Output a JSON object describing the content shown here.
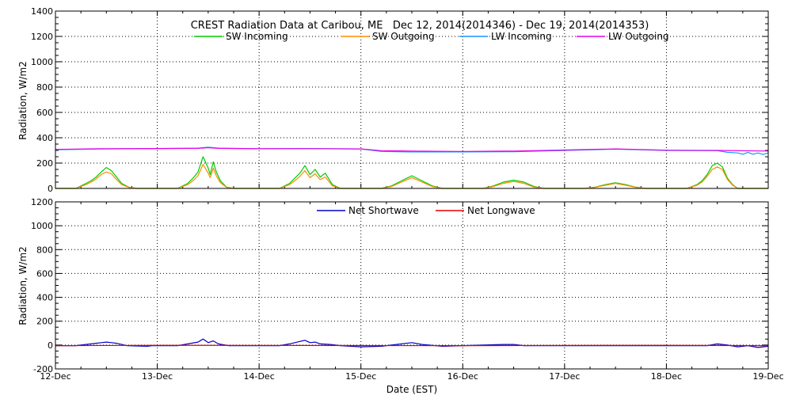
{
  "chart_data": [
    {
      "type": "line",
      "title": "CREST Radiation Data at Caribou, ME   Dec 12, 2014(2014346) - Dec 19, 2014(2014353)",
      "xlabel": "",
      "ylabel": "Radiation, W/m2",
      "xlim": [
        0,
        7
      ],
      "ylim": [
        0,
        1400
      ],
      "y_ticks": [
        0,
        200,
        400,
        600,
        800,
        1000,
        1200,
        1400
      ],
      "grid": true,
      "legend_position": "top",
      "series": [
        {
          "name": "SW Incoming",
          "color": "#00cc00",
          "x": [
            0,
            0.2,
            0.3,
            0.35,
            0.4,
            0.45,
            0.5,
            0.55,
            0.6,
            0.65,
            0.72,
            0.8,
            1.2,
            1.3,
            1.35,
            1.4,
            1.45,
            1.5,
            1.52,
            1.55,
            1.58,
            1.62,
            1.68,
            1.75,
            2.2,
            2.3,
            2.35,
            2.4,
            2.45,
            2.5,
            2.55,
            2.6,
            2.65,
            2.72,
            2.8,
            3.2,
            3.3,
            3.4,
            3.5,
            3.6,
            3.7,
            3.8,
            4.2,
            4.3,
            4.4,
            4.5,
            4.6,
            4.7,
            4.8,
            5.2,
            5.3,
            5.4,
            5.5,
            5.6,
            5.7,
            5.8,
            6.2,
            6.3,
            6.35,
            6.4,
            6.45,
            6.5,
            6.55,
            6.6,
            6.65,
            6.7,
            7
          ],
          "values": [
            0,
            0,
            40,
            60,
            90,
            130,
            165,
            140,
            90,
            40,
            10,
            0,
            0,
            40,
            80,
            130,
            250,
            160,
            110,
            210,
            130,
            60,
            10,
            0,
            0,
            40,
            80,
            120,
            180,
            110,
            150,
            90,
            120,
            30,
            0,
            0,
            20,
            60,
            100,
            60,
            20,
            0,
            0,
            20,
            50,
            65,
            50,
            15,
            0,
            0,
            10,
            30,
            45,
            30,
            10,
            0,
            0,
            30,
            60,
            110,
            180,
            200,
            170,
            80,
            30,
            0,
            0
          ]
        },
        {
          "name": "SW Outgoing",
          "color": "#ff8c00",
          "x": [
            0,
            0.2,
            0.3,
            0.35,
            0.4,
            0.45,
            0.5,
            0.55,
            0.6,
            0.65,
            0.72,
            0.8,
            1.2,
            1.3,
            1.35,
            1.4,
            1.45,
            1.5,
            1.52,
            1.55,
            1.58,
            1.62,
            1.68,
            1.75,
            2.2,
            2.3,
            2.35,
            2.4,
            2.45,
            2.5,
            2.55,
            2.6,
            2.65,
            2.72,
            2.8,
            3.2,
            3.3,
            3.4,
            3.5,
            3.6,
            3.7,
            3.8,
            4.2,
            4.3,
            4.4,
            4.5,
            4.6,
            4.7,
            4.8,
            5.2,
            5.3,
            5.4,
            5.5,
            5.6,
            5.7,
            5.8,
            6.2,
            6.3,
            6.35,
            6.4,
            6.45,
            6.5,
            6.55,
            6.6,
            6.65,
            6.7,
            7
          ],
          "values": [
            0,
            0,
            30,
            50,
            75,
            110,
            130,
            115,
            70,
            30,
            8,
            0,
            0,
            30,
            60,
            100,
            190,
            120,
            85,
            160,
            100,
            45,
            8,
            0,
            0,
            30,
            60,
            95,
            140,
            85,
            115,
            70,
            90,
            20,
            0,
            0,
            15,
            50,
            85,
            50,
            15,
            0,
            0,
            15,
            40,
            55,
            40,
            10,
            0,
            0,
            8,
            25,
            40,
            25,
            8,
            0,
            0,
            25,
            50,
            95,
            150,
            170,
            150,
            70,
            25,
            0,
            0
          ]
        },
        {
          "name": "LW Incoming",
          "color": "#1e90ff",
          "x": [
            0,
            0.5,
            1.0,
            1.4,
            1.5,
            1.6,
            2.0,
            2.5,
            3.0,
            3.2,
            3.5,
            4.0,
            4.5,
            5.0,
            5.5,
            6.0,
            6.5,
            6.6,
            6.7,
            6.75,
            6.8,
            6.85,
            6.9,
            6.95,
            7
          ],
          "values": [
            305,
            312,
            315,
            318,
            325,
            318,
            313,
            315,
            312,
            292,
            288,
            288,
            290,
            300,
            310,
            300,
            298,
            285,
            280,
            270,
            285,
            270,
            280,
            268,
            280
          ]
        },
        {
          "name": "LW Outgoing",
          "color": "#e800e8",
          "x": [
            0,
            0.5,
            1.0,
            1.4,
            1.5,
            1.6,
            2.0,
            2.5,
            3.0,
            3.2,
            3.5,
            4.0,
            4.5,
            5.0,
            5.5,
            6.0,
            6.5,
            7
          ],
          "values": [
            308,
            314,
            315,
            316,
            322,
            316,
            313,
            314,
            312,
            298,
            295,
            292,
            295,
            303,
            312,
            302,
            300,
            295
          ]
        }
      ]
    },
    {
      "type": "line",
      "title": "",
      "xlabel": "Date (EST)",
      "ylabel": "Radiation, W/m2",
      "xlim": [
        0,
        7
      ],
      "ylim": [
        -200,
        1200
      ],
      "y_ticks": [
        -200,
        0,
        200,
        400,
        600,
        800,
        1000,
        1200
      ],
      "x_ticks": [
        "12-Dec",
        "13-Dec",
        "14-Dec",
        "15-Dec",
        "16-Dec",
        "17-Dec",
        "18-Dec",
        "19-Dec"
      ],
      "grid": true,
      "legend_position": "top",
      "series": [
        {
          "name": "Net Shortwave",
          "color": "#0000cc",
          "x": [
            0,
            0.2,
            0.3,
            0.4,
            0.5,
            0.55,
            0.6,
            0.7,
            0.9,
            0.95,
            1.2,
            1.3,
            1.4,
            1.45,
            1.5,
            1.55,
            1.6,
            1.7,
            2.2,
            2.3,
            2.4,
            2.45,
            2.5,
            2.55,
            2.6,
            2.7,
            2.8,
            3.0,
            3.2,
            3.4,
            3.5,
            3.6,
            3.8,
            4.0,
            4.4,
            4.5,
            4.6,
            5.0,
            5.5,
            6.0,
            6.4,
            6.5,
            6.6,
            6.7,
            6.8,
            6.9,
            7
          ],
          "values": [
            -5,
            -5,
            5,
            15,
            25,
            20,
            15,
            -5,
            -10,
            -5,
            -5,
            10,
            25,
            50,
            20,
            35,
            10,
            -5,
            -5,
            10,
            30,
            40,
            20,
            25,
            10,
            5,
            -5,
            -15,
            -10,
            10,
            20,
            5,
            -10,
            -5,
            5,
            5,
            -5,
            -5,
            -5,
            -5,
            -5,
            10,
            0,
            -15,
            -5,
            -20,
            -10
          ]
        },
        {
          "name": "Net Longwave",
          "color": "#dd0000",
          "x": [
            0,
            1,
            2,
            3,
            4,
            5,
            6,
            7
          ],
          "values": [
            -5,
            -2,
            -3,
            -4,
            -5,
            -3,
            -2,
            -5
          ]
        }
      ]
    }
  ]
}
